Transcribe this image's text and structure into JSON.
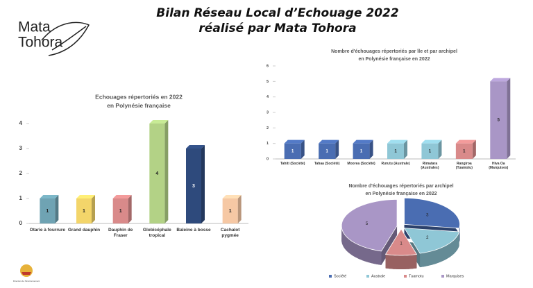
{
  "header": {
    "title": "Bilan Réseau Local d’Echouage 2022",
    "subtitle": "réalisé par Mata Tohora"
  },
  "logo": {
    "name": [
      "Mata",
      "Tohora"
    ],
    "caption": "Direction de l'Environnement"
  },
  "chart_data": [
    {
      "type": "bar",
      "title": [
        "Echouages répertoriés en 2022",
        "en Polynésie française"
      ],
      "categories": [
        "Otarie à fourrure",
        "Grand dauphin",
        "Dauphin de Fraser",
        "Globicéphale tropical",
        "Baleine à bosse",
        "Cachalot pygmée"
      ],
      "values": [
        1,
        1,
        1,
        4,
        3,
        1
      ],
      "colors": [
        "#6fa3b3",
        "#f3d56a",
        "#d98a8a",
        "#b3d286",
        "#2e4a7c",
        "#f6c8a4"
      ],
      "ylim": [
        0,
        4
      ],
      "yticks": [
        0,
        1,
        2,
        3,
        4
      ],
      "grid": false
    },
    {
      "type": "bar",
      "title": [
        "Nombre d'échouages répertoriés par île et par archipel",
        "en Polynésie française en 2022"
      ],
      "categories": [
        "Tahiti (Société)",
        "Tahaa (Société)",
        "Moorea (Société)",
        "Rurutu (Australe)",
        "Rimatara (Australes)",
        "Rangiroa (Tuamotu)",
        "Hiva Oa (Marquises)"
      ],
      "values": [
        1,
        1,
        1,
        1,
        1,
        1,
        5
      ],
      "colors": [
        "#4a6db2",
        "#4a6db2",
        "#4a6db2",
        "#8fc7d6",
        "#8fc7d6",
        "#d98a8a",
        "#a996c6"
      ],
      "ylim": [
        0,
        6
      ],
      "yticks": [
        0,
        1,
        2,
        3,
        4,
        5,
        6
      ],
      "grid": false
    },
    {
      "type": "pie",
      "title": [
        "Nombre d'échouages répertoriés par archipel",
        "en Polynésie française en 2022"
      ],
      "categories": [
        "Société",
        "Australe",
        "Tuamotu",
        "Marquises"
      ],
      "values": [
        3,
        2,
        1,
        5
      ],
      "colors": [
        "#4a6db2",
        "#8fc7d6",
        "#d98a8a",
        "#a996c6"
      ],
      "legend": "bottom"
    }
  ]
}
